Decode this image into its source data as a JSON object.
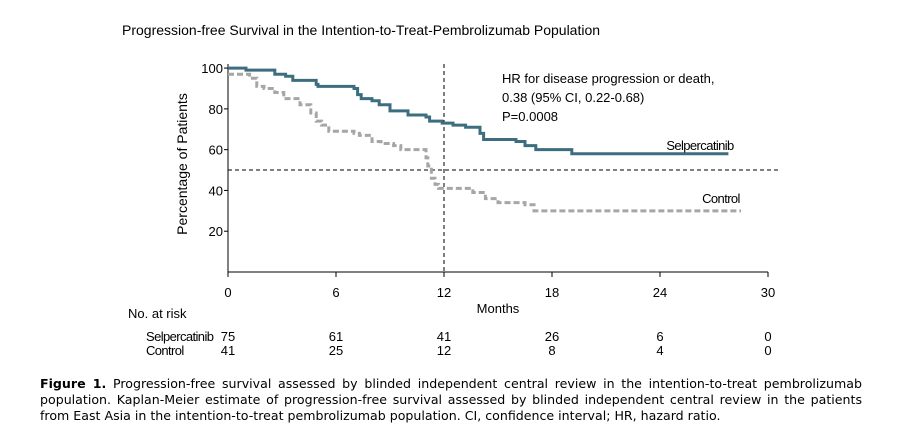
{
  "figure_title": "Progression-free Survival in the Intention-to-Treat-Pembrolizumab Population",
  "caption": {
    "label": "Figure 1.",
    "text": "Progression-free survival assessed by blinded independent central review in the intention-to-treat pembrolizumab population. Kaplan-Meier estimate of progression-free survival assessed by blinded independent central review in the patients from East Asia in the intention-to-treat pembrolizumab population. CI, confidence interval; HR, hazard ratio."
  },
  "risk_table": {
    "header": "No. at risk",
    "rows": [
      {
        "label": "Selpercatinib",
        "counts": [
          "75",
          "61",
          "41",
          "26",
          "6",
          "0"
        ]
      },
      {
        "label": "Control",
        "counts": [
          "41",
          "25",
          "12",
          "8",
          "4",
          "0"
        ]
      }
    ]
  },
  "colors": {
    "selpercatinib": "#3d6e80",
    "control": "#a6a6a6",
    "axis": "#000000"
  },
  "chart_data": {
    "type": "line",
    "title": "Progression-free Survival in the Intention-to-Treat-Pembrolizumab Population",
    "xlabel": "Months",
    "ylabel": "Percentage of Patients",
    "xlim": [
      0,
      30
    ],
    "ylim": [
      0,
      102
    ],
    "x_ticks": [
      0,
      6,
      12,
      18,
      24,
      30
    ],
    "y_ticks": [
      20,
      40,
      60,
      80,
      100
    ],
    "annotations": {
      "hr_lines": [
        "HR for disease progression or death,",
        "0.38 (95% CI, 0.22-0.68)",
        "P=0.0008"
      ],
      "median_reference_y": 50,
      "median_reference_x": 12
    },
    "series": [
      {
        "name": "Selpercatinib",
        "style": "solid",
        "steps": [
          [
            0,
            100
          ],
          [
            1,
            99
          ],
          [
            2.6,
            97
          ],
          [
            3.2,
            96
          ],
          [
            3.6,
            94
          ],
          [
            4.9,
            92
          ],
          [
            5,
            91
          ],
          [
            6,
            91
          ],
          [
            7,
            90
          ],
          [
            7.2,
            87
          ],
          [
            7.4,
            85
          ],
          [
            8,
            84
          ],
          [
            8.4,
            82
          ],
          [
            9,
            79
          ],
          [
            10,
            77
          ],
          [
            11,
            76
          ],
          [
            11.2,
            74
          ],
          [
            11.9,
            73
          ],
          [
            12,
            73
          ],
          [
            12.5,
            72
          ],
          [
            13.2,
            71
          ],
          [
            13.9,
            71
          ],
          [
            14,
            68
          ],
          [
            14.2,
            65
          ],
          [
            16,
            64
          ],
          [
            16.5,
            62
          ],
          [
            17.1,
            60
          ],
          [
            19.1,
            58
          ],
          [
            27.8,
            58
          ]
        ]
      },
      {
        "name": "Control",
        "style": "dashed",
        "steps": [
          [
            0,
            97
          ],
          [
            1.2,
            95
          ],
          [
            1.6,
            91
          ],
          [
            2,
            90
          ],
          [
            2.6,
            88
          ],
          [
            3.1,
            85
          ],
          [
            4,
            82
          ],
          [
            4.6,
            78
          ],
          [
            4.9,
            74
          ],
          [
            5.2,
            72
          ],
          [
            5.6,
            69
          ],
          [
            7,
            68
          ],
          [
            7.3,
            67
          ],
          [
            8,
            64
          ],
          [
            8.5,
            63
          ],
          [
            9.2,
            62
          ],
          [
            9.6,
            60
          ],
          [
            10.5,
            60
          ],
          [
            11,
            56
          ],
          [
            11.1,
            52
          ],
          [
            11.3,
            46
          ],
          [
            11.5,
            43
          ],
          [
            11.7,
            41
          ],
          [
            12,
            41
          ],
          [
            13.2,
            41
          ],
          [
            13.6,
            39
          ],
          [
            14.3,
            36
          ],
          [
            15,
            34
          ],
          [
            16.5,
            33
          ],
          [
            17,
            30
          ],
          [
            28.5,
            30
          ]
        ]
      }
    ],
    "legend": [
      "Selpercatinib",
      "Control"
    ]
  }
}
